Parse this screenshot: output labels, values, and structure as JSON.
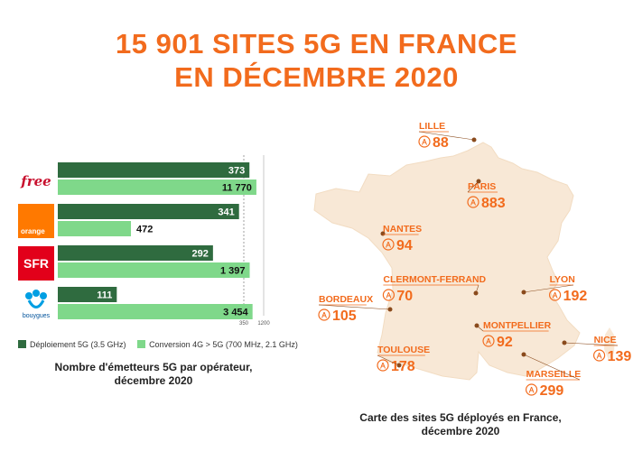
{
  "header": {
    "title_line1": "15 901 SITES 5G EN FRANCE",
    "title_line2": "EN DÉCEMBRE 2020"
  },
  "chart_data": {
    "type": "bar",
    "orientation": "horizontal",
    "categories": [
      "Free",
      "Orange",
      "SFR",
      "Bouygues Telecom"
    ],
    "series": [
      {
        "name": "Déploiement 5G (3.5 GHz)",
        "values": [
          373,
          341,
          292,
          111
        ],
        "labels": [
          "373",
          "341",
          "292",
          "111"
        ],
        "color": "#2f6b3f"
      },
      {
        "name": "Conversion 4G > 5G (700 MHz, 2.1 GHz)",
        "values": [
          11770,
          472,
          1397,
          3454
        ],
        "labels": [
          "11 770",
          "472",
          "1 397",
          "3 454"
        ],
        "color": "#7fd88a"
      }
    ],
    "reference_ticks": [
      {
        "label": "350",
        "series": 0,
        "value": 350
      },
      {
        "label": "1200",
        "series": 1,
        "value": 1200
      }
    ],
    "legend_placement": "bottom",
    "caption_line1": "Nombre d'émetteurs 5G par opérateur,",
    "caption_line2": "décembre 2020"
  },
  "logos": {
    "free": "free",
    "orange": "orange",
    "sfr": "SFR",
    "bouygues": "bouygues"
  },
  "map": {
    "caption_line1": "Carte des sites 5G déployés en France,",
    "caption_line2": "décembre 2020",
    "city_color": "#f26b1d",
    "land_color": "#f8e8d6",
    "icon": "antenna-icon",
    "cities": [
      {
        "name": "LILLE",
        "value": "88"
      },
      {
        "name": "PARIS",
        "value": "883"
      },
      {
        "name": "NANTES",
        "value": "94"
      },
      {
        "name": "CLERMONT-FERRAND",
        "value": "70"
      },
      {
        "name": "LYON",
        "value": "192"
      },
      {
        "name": "BORDEAUX",
        "value": "105"
      },
      {
        "name": "MONTPELLIER",
        "value": "92"
      },
      {
        "name": "NICE",
        "value": "139"
      },
      {
        "name": "TOULOUSE",
        "value": "178"
      },
      {
        "name": "MARSEILLE",
        "value": "299"
      }
    ]
  }
}
